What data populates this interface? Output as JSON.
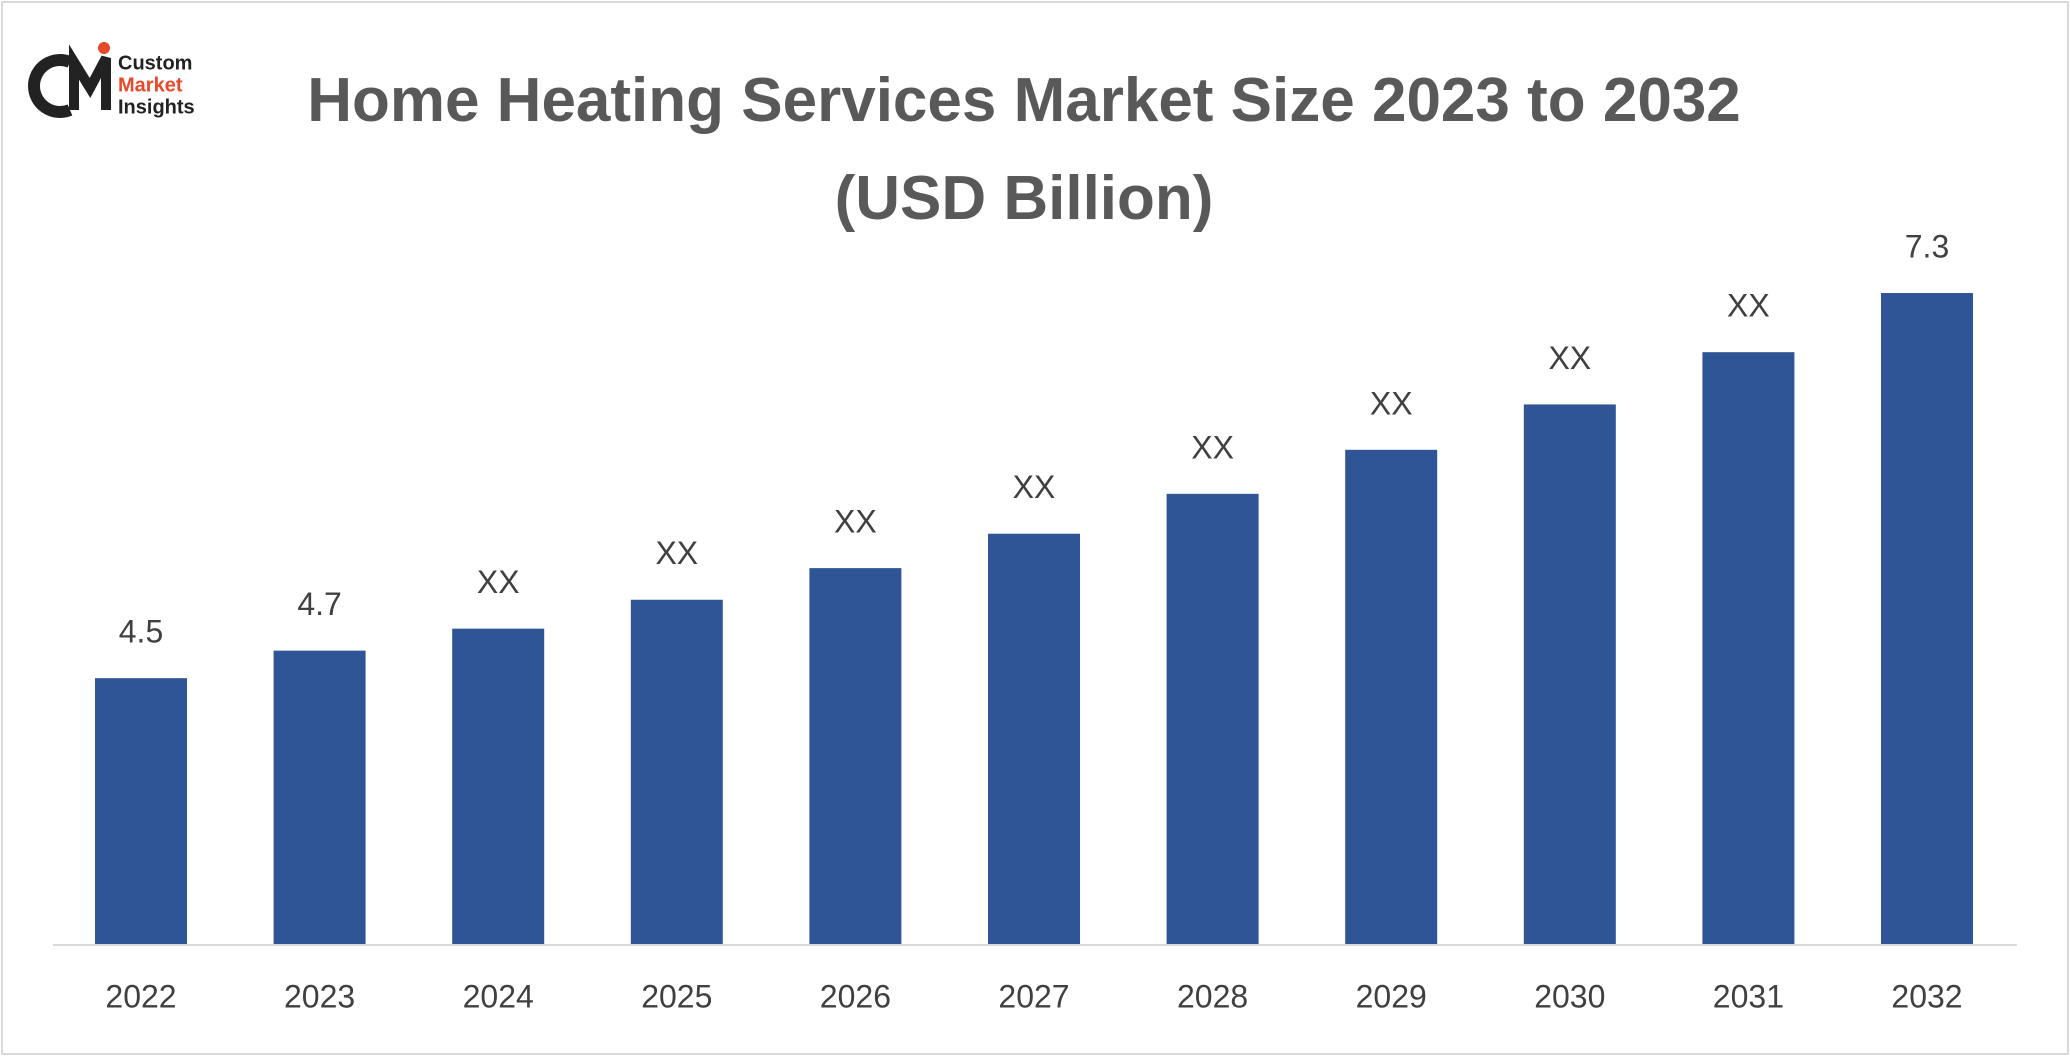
{
  "logo": {
    "lines": [
      "Custom",
      "Market",
      "Insights"
    ]
  },
  "chart_data": {
    "type": "bar",
    "title": "Home Heating Services Market Size 2023 to 2032 (USD Billion)",
    "categories": [
      "2022",
      "2023",
      "2024",
      "2025",
      "2026",
      "2027",
      "2028",
      "2029",
      "2030",
      "2031",
      "2032"
    ],
    "values": [
      4.5,
      4.7,
      4.86,
      5.07,
      5.3,
      5.55,
      5.84,
      6.16,
      6.49,
      6.87,
      7.3
    ],
    "value_labels": [
      "4.5",
      "4.7",
      "XX",
      "XX",
      "XX",
      "XX",
      "XX",
      "XX",
      "XX",
      "XX",
      "7.3"
    ],
    "color": "#2f5597",
    "ylim": [
      2.56,
      7.7
    ]
  }
}
